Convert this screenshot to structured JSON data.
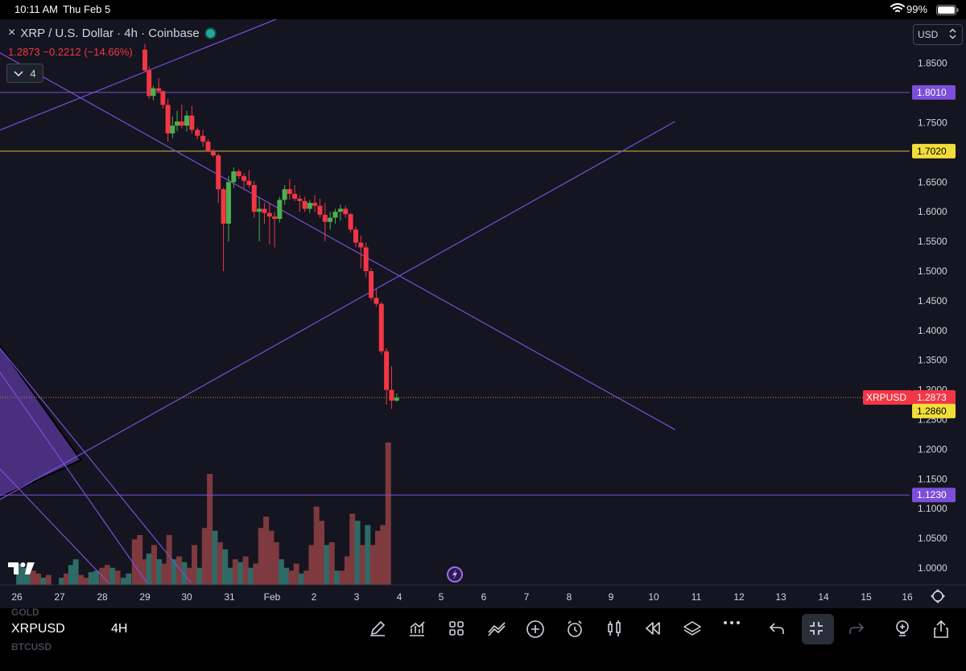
{
  "status_bar": {
    "time": "10:11 AM",
    "date": "Thu Feb 5",
    "battery": "99%"
  },
  "header": {
    "close_glyph": "×",
    "title": "XRP / U.S. Dollar · 4h · Coinbase",
    "quote": "1.2873  −0.2212 (−14.66%)",
    "indicator_count": "4",
    "currency": "USD"
  },
  "chart_data": {
    "type": "candlestick",
    "symbol": "XRPUSD",
    "interval": "4h",
    "y_ticks": [
      "1.8500",
      "1.7500",
      "1.6500",
      "1.6000",
      "1.5500",
      "1.5000",
      "1.4500",
      "1.4000",
      "1.3500",
      "1.3000",
      "1.2500",
      "1.2000",
      "1.1500",
      "1.1000",
      "1.0500",
      "1.0000"
    ],
    "x_ticks": [
      "26",
      "27",
      "28",
      "29",
      "30",
      "31",
      "Feb",
      "2",
      "3",
      "4",
      "5",
      "6",
      "7",
      "8",
      "9",
      "10",
      "11",
      "12",
      "13",
      "14",
      "15",
      "16"
    ],
    "price_labels": [
      {
        "text": "1.8010",
        "value": 1.801,
        "kind": "horizontal-line"
      },
      {
        "text": "1.7020",
        "value": 1.702,
        "kind": "horizontal-line"
      },
      {
        "text": "1.2873",
        "value": 1.2873,
        "kind": "last-price",
        "symbol": "XRPUSD"
      },
      {
        "text": "1.2860",
        "value": 1.286,
        "kind": "marker"
      },
      {
        "text": "1.1230",
        "value": 1.123,
        "kind": "horizontal-line"
      }
    ],
    "candles": [
      [
        29.0,
        1.873,
        1.883,
        1.835,
        1.838
      ],
      [
        29.1,
        1.838,
        1.845,
        1.79,
        1.795
      ],
      [
        29.2,
        1.795,
        1.812,
        1.788,
        1.808
      ],
      [
        29.33,
        1.808,
        1.825,
        1.8,
        1.803
      ],
      [
        29.43,
        1.803,
        1.805,
        1.774,
        1.78
      ],
      [
        29.55,
        1.78,
        1.79,
        1.718,
        1.732
      ],
      [
        29.66,
        1.732,
        1.76,
        1.724,
        1.745
      ],
      [
        29.77,
        1.745,
        1.77,
        1.736,
        1.752
      ],
      [
        29.88,
        1.752,
        1.78,
        1.74,
        1.745
      ],
      [
        30.0,
        1.745,
        1.77,
        1.735,
        1.762
      ],
      [
        30.12,
        1.762,
        1.778,
        1.732,
        1.738
      ],
      [
        30.25,
        1.738,
        1.742,
        1.722,
        1.728
      ],
      [
        30.38,
        1.728,
        1.738,
        1.71,
        1.718
      ],
      [
        30.5,
        1.718,
        1.722,
        1.7,
        1.702
      ],
      [
        30.62,
        1.702,
        1.706,
        1.692,
        1.695
      ],
      [
        30.74,
        1.695,
        1.698,
        1.615,
        1.638
      ],
      [
        30.86,
        1.638,
        1.64,
        1.5,
        1.58
      ],
      [
        30.98,
        1.58,
        1.66,
        1.55,
        1.65
      ],
      [
        31.1,
        1.65,
        1.675,
        1.64,
        1.668
      ],
      [
        31.22,
        1.668,
        1.672,
        1.655,
        1.66
      ],
      [
        31.34,
        1.66,
        1.665,
        1.64,
        1.652
      ],
      [
        31.46,
        1.652,
        1.67,
        1.64,
        1.645
      ],
      [
        31.58,
        1.645,
        1.652,
        1.59,
        1.6
      ],
      [
        31.7,
        1.6,
        1.625,
        1.55,
        1.605
      ],
      [
        31.82,
        1.605,
        1.615,
        1.58,
        1.598
      ],
      [
        31.94,
        1.598,
        1.615,
        1.545,
        1.592
      ],
      [
        32.06,
        1.592,
        1.6,
        1.54,
        1.588
      ],
      [
        32.18,
        1.588,
        1.625,
        1.582,
        1.62
      ],
      [
        32.3,
        1.62,
        1.645,
        1.612,
        1.638
      ],
      [
        32.42,
        1.638,
        1.655,
        1.62,
        1.63
      ],
      [
        32.54,
        1.63,
        1.645,
        1.618,
        1.622
      ],
      [
        32.66,
        1.622,
        1.628,
        1.6,
        1.618
      ],
      [
        32.78,
        1.618,
        1.625,
        1.6,
        1.605
      ],
      [
        32.9,
        1.605,
        1.62,
        1.598,
        1.615
      ],
      [
        33.02,
        1.615,
        1.628,
        1.6,
        1.61
      ],
      [
        33.14,
        1.61,
        1.622,
        1.59,
        1.595
      ],
      [
        33.26,
        1.595,
        1.615,
        1.55,
        1.583
      ],
      [
        33.38,
        1.583,
        1.6,
        1.57,
        1.59
      ],
      [
        33.5,
        1.59,
        1.605,
        1.58,
        1.6
      ],
      [
        33.62,
        1.6,
        1.612,
        1.585,
        1.605
      ],
      [
        33.74,
        1.605,
        1.61,
        1.59,
        1.596
      ],
      [
        33.86,
        1.596,
        1.598,
        1.565,
        1.57
      ],
      [
        33.98,
        1.57,
        1.575,
        1.54,
        1.548
      ],
      [
        34.1,
        1.548,
        1.56,
        1.505,
        1.54
      ],
      [
        34.22,
        1.54,
        1.548,
        1.49,
        1.5
      ],
      [
        34.34,
        1.5,
        1.505,
        1.45,
        1.455
      ],
      [
        34.46,
        1.455,
        1.47,
        1.44,
        1.445
      ],
      [
        34.58,
        1.445,
        1.448,
        1.36,
        1.365
      ],
      [
        34.7,
        1.365,
        1.37,
        1.275,
        1.3
      ],
      [
        34.82,
        1.3,
        1.34,
        1.268,
        1.282
      ],
      [
        34.94,
        1.282,
        1.294,
        1.28,
        1.287
      ]
    ],
    "volume": [
      [
        26.05,
        15,
        "g"
      ],
      [
        26.16,
        12,
        "g"
      ],
      [
        26.27,
        8,
        "g"
      ],
      [
        26.38,
        10,
        "r"
      ],
      [
        26.5,
        8,
        "r"
      ],
      [
        26.62,
        5,
        "g"
      ],
      [
        26.74,
        7,
        "r"
      ],
      [
        27.05,
        5,
        "g"
      ],
      [
        27.16,
        8,
        "r"
      ],
      [
        27.27,
        14,
        "g"
      ],
      [
        27.38,
        18,
        "g"
      ],
      [
        27.5,
        7,
        "r"
      ],
      [
        27.62,
        5,
        "r"
      ],
      [
        27.74,
        9,
        "g"
      ],
      [
        27.86,
        10,
        "g"
      ],
      [
        28.0,
        12,
        "r"
      ],
      [
        28.12,
        14,
        "r"
      ],
      [
        28.24,
        12,
        "g"
      ],
      [
        28.36,
        10,
        "r"
      ],
      [
        28.5,
        5,
        "g"
      ],
      [
        28.62,
        8,
        "g"
      ],
      [
        28.76,
        32,
        "r"
      ],
      [
        28.88,
        35,
        "r"
      ],
      [
        29.0,
        18,
        "r"
      ],
      [
        29.1,
        22,
        "g"
      ],
      [
        29.22,
        28,
        "r"
      ],
      [
        29.34,
        18,
        "g"
      ],
      [
        29.46,
        15,
        "r"
      ],
      [
        29.58,
        35,
        "r"
      ],
      [
        29.7,
        18,
        "g"
      ],
      [
        29.82,
        20,
        "r"
      ],
      [
        29.94,
        16,
        "g"
      ],
      [
        30.06,
        12,
        "r"
      ],
      [
        30.18,
        28,
        "r"
      ],
      [
        30.3,
        12,
        "g"
      ],
      [
        30.42,
        40,
        "r"
      ],
      [
        30.54,
        78,
        "r"
      ],
      [
        30.66,
        38,
        "g"
      ],
      [
        30.78,
        30,
        "r"
      ],
      [
        30.9,
        25,
        "g"
      ],
      [
        31.02,
        12,
        "g"
      ],
      [
        31.14,
        18,
        "r"
      ],
      [
        31.26,
        16,
        "g"
      ],
      [
        31.38,
        20,
        "r"
      ],
      [
        31.5,
        12,
        "g"
      ],
      [
        31.62,
        15,
        "r"
      ],
      [
        31.74,
        40,
        "r"
      ],
      [
        31.86,
        48,
        "r"
      ],
      [
        31.98,
        38,
        "r"
      ],
      [
        32.1,
        30,
        "r"
      ],
      [
        32.22,
        18,
        "g"
      ],
      [
        32.34,
        12,
        "g"
      ],
      [
        32.46,
        10,
        "r"
      ],
      [
        32.58,
        15,
        "r"
      ],
      [
        32.7,
        8,
        "g"
      ],
      [
        32.82,
        10,
        "r"
      ],
      [
        32.94,
        28,
        "r"
      ],
      [
        33.06,
        55,
        "r"
      ],
      [
        33.18,
        45,
        "r"
      ],
      [
        33.3,
        28,
        "g"
      ],
      [
        33.42,
        30,
        "r"
      ],
      [
        33.54,
        10,
        "g"
      ],
      [
        33.66,
        10,
        "r"
      ],
      [
        33.78,
        20,
        "r"
      ],
      [
        33.9,
        50,
        "r"
      ],
      [
        34.02,
        45,
        "g"
      ],
      [
        34.14,
        28,
        "r"
      ],
      [
        34.26,
        42,
        "g"
      ],
      [
        34.38,
        28,
        "r"
      ],
      [
        34.5,
        38,
        "r"
      ],
      [
        34.62,
        42,
        "r"
      ],
      [
        34.74,
        100,
        "r"
      ]
    ],
    "drawings": [
      {
        "kind": "trendline",
        "from": [
          25.0,
          1.888
        ],
        "to": [
          41.5,
          1.233
        ]
      },
      {
        "kind": "trendline",
        "from": [
          25.0,
          1.723
        ],
        "to": [
          32.55,
          1.937
        ]
      },
      {
        "kind": "trendline",
        "from": [
          25.0,
          1.095
        ],
        "to": [
          41.5,
          1.752
        ]
      },
      {
        "kind": "trendline",
        "from": [
          25.0,
          1.205
        ],
        "to": [
          28.15,
          0.975
        ]
      },
      {
        "kind": "trendline",
        "from": [
          25.0,
          1.382
        ],
        "to": [
          29.05,
          0.975
        ]
      },
      {
        "kind": "trendline",
        "from": [
          25.0,
          1.415
        ],
        "to": [
          30.1,
          0.975
        ]
      },
      {
        "kind": "filled-triangle",
        "points": [
          [
            25.0,
            1.425
          ],
          [
            27.5,
            1.182
          ],
          [
            25.0,
            1.102
          ]
        ]
      }
    ],
    "event_markers": [
      {
        "x": 6.15
      },
      {
        "x": 10.15
      },
      {
        "x": 11.15
      }
    ]
  },
  "colors": {
    "background": "#141520",
    "up": "#4caf50",
    "down": "#f23645",
    "vol_up": "#2e6b67",
    "vol_down": "#7e3a3e",
    "drawing": "#7b4fd9",
    "fib_yellow": "#d4c33a",
    "price_line": "#d4892a"
  },
  "bottom_bar": {
    "symbol": "XRPUSD",
    "interval": "4H",
    "faint_symbol_top": "GOLD",
    "faint_symbol_bottom": "BTCUSD",
    "tools": [
      "pen-icon",
      "indicators-icon",
      "grid-icon",
      "drawings-icon",
      "add-icon",
      "alarm-icon",
      "candles-icon",
      "replay-icon",
      "layers-icon",
      "more-icon",
      "undo-icon",
      "collapse-icon",
      "redo-icon",
      "idea-icon",
      "share-icon"
    ]
  }
}
